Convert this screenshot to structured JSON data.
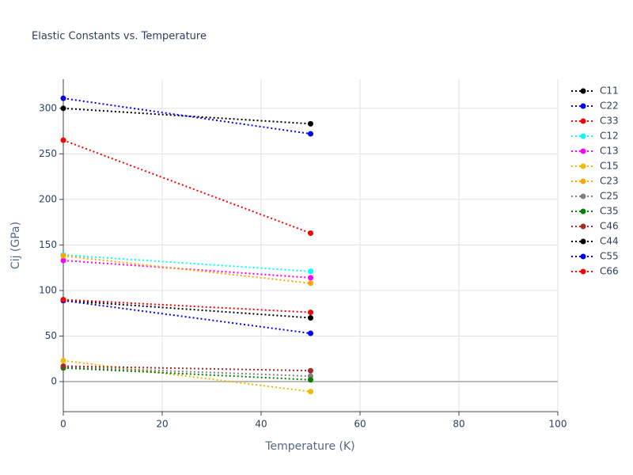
{
  "chart_data": {
    "type": "line",
    "title": "Elastic Constants vs. Temperature",
    "x_label": "Temperature (K)",
    "y_label": "Cij (GPa)",
    "x": [
      0,
      50
    ],
    "xlim": [
      0,
      100
    ],
    "xticks": [
      0,
      20,
      40,
      60,
      80,
      100
    ],
    "ylim": [
      -33,
      332
    ],
    "yticks": [
      0,
      50,
      100,
      150,
      200,
      250,
      300
    ],
    "grid": true,
    "legend": "right",
    "series": [
      {
        "name": "C11",
        "color": "#000000",
        "values": [
          300,
          283
        ]
      },
      {
        "name": "C22",
        "color": "#0000ff",
        "values": [
          311,
          272
        ]
      },
      {
        "name": "C33",
        "color": "#ff0000",
        "values": [
          265,
          163
        ]
      },
      {
        "name": "C12",
        "color": "#00ffff",
        "values": [
          139,
          121
        ]
      },
      {
        "name": "C13",
        "color": "#ff00ff",
        "values": [
          133,
          114
        ]
      },
      {
        "name": "C15",
        "color": "#f0b800",
        "values": [
          23,
          -11
        ]
      },
      {
        "name": "C23",
        "color": "#ffa500",
        "values": [
          138,
          108
        ]
      },
      {
        "name": "C25",
        "color": "#808080",
        "values": [
          16,
          6
        ]
      },
      {
        "name": "C35",
        "color": "#008000",
        "values": [
          15,
          2
        ]
      },
      {
        "name": "C46",
        "color": "#a52a2a",
        "values": [
          17,
          12
        ]
      },
      {
        "name": "C44",
        "color": "#000000",
        "values": [
          89,
          70
        ]
      },
      {
        "name": "C55",
        "color": "#0000ff",
        "values": [
          89,
          53
        ]
      },
      {
        "name": "C66",
        "color": "#ff0000",
        "values": [
          90,
          76
        ]
      }
    ]
  }
}
